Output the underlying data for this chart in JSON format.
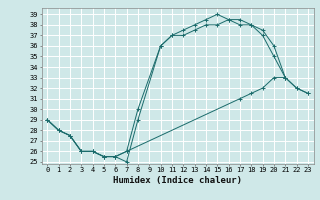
{
  "xlabel": "Humidex (Indice chaleur)",
  "bg_color": "#cfe8e8",
  "grid_color": "#ffffff",
  "line_color": "#1a6b6b",
  "curve1_x": [
    0,
    1,
    2,
    3,
    4,
    5,
    6,
    7,
    8,
    10,
    11,
    12,
    13,
    14,
    15,
    16,
    17,
    18,
    19,
    20,
    21
  ],
  "curve1_y": [
    29,
    28,
    27.5,
    26,
    26,
    25.5,
    25.5,
    25,
    29,
    36,
    37,
    37,
    37.5,
    38,
    38,
    38.5,
    38,
    38,
    37,
    35,
    33
  ],
  "curve2_x": [
    0,
    1,
    2,
    3,
    4,
    5,
    6,
    7,
    8,
    10,
    11,
    12,
    13,
    14,
    15,
    16,
    17,
    18,
    19,
    20,
    21,
    22,
    23
  ],
  "curve2_y": [
    29,
    28,
    27.5,
    26,
    26,
    25.5,
    25.5,
    26,
    30,
    36,
    37,
    37.5,
    38,
    38.5,
    39,
    38.5,
    38.5,
    38,
    37.5,
    36,
    33,
    32,
    31.5
  ],
  "curve3_x": [
    0,
    1,
    2,
    3,
    4,
    5,
    6,
    7,
    17,
    18,
    19,
    20,
    21,
    22,
    23
  ],
  "curve3_y": [
    29,
    28,
    27.5,
    26,
    26,
    25.5,
    25.5,
    26,
    31,
    31.5,
    32,
    33,
    33,
    32,
    31.5
  ],
  "ylim": [
    24.8,
    39.6
  ],
  "xlim": [
    -0.5,
    23.5
  ],
  "yticks": [
    25,
    26,
    27,
    28,
    29,
    30,
    31,
    32,
    33,
    34,
    35,
    36,
    37,
    38,
    39
  ],
  "xticks": [
    0,
    1,
    2,
    3,
    4,
    5,
    6,
    7,
    8,
    9,
    10,
    11,
    12,
    13,
    14,
    15,
    16,
    17,
    18,
    19,
    20,
    21,
    22,
    23
  ],
  "tick_fontsize": 5.0,
  "label_fontsize": 6.5
}
